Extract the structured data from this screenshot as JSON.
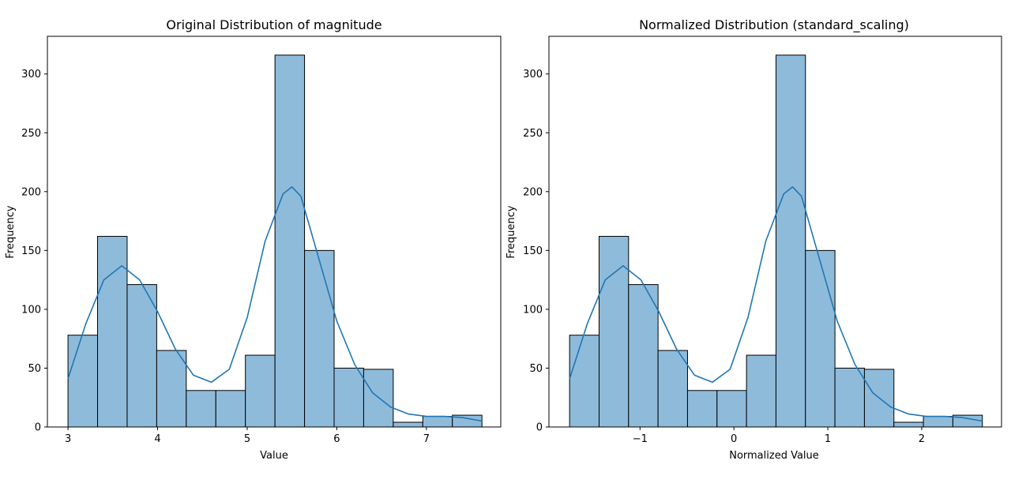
{
  "chart_data": [
    {
      "type": "bar",
      "title": "Original Distribution of magnitude",
      "xlabel": "Value",
      "ylabel": "Frequency",
      "xlim": [
        2.77,
        7.83
      ],
      "ylim": [
        0,
        332
      ],
      "bin_edges": [
        3.0,
        3.33,
        3.66,
        3.99,
        4.32,
        4.65,
        4.98,
        5.31,
        5.64,
        5.97,
        6.3,
        6.63,
        6.96,
        7.29,
        7.62
      ],
      "values": [
        78,
        162,
        121,
        65,
        31,
        31,
        61,
        316,
        150,
        50,
        49,
        4,
        9,
        10
      ],
      "xticks": [
        3,
        4,
        5,
        6,
        7
      ],
      "xtick_labels": [
        "3",
        "4",
        "5",
        "6",
        "7"
      ],
      "yticks": [
        0,
        50,
        100,
        150,
        200,
        250,
        300
      ],
      "kde": {
        "x": [
          3.0,
          3.2,
          3.4,
          3.6,
          3.8,
          4.0,
          4.2,
          4.4,
          4.6,
          4.8,
          5.0,
          5.2,
          5.4,
          5.5,
          5.6,
          5.8,
          6.0,
          6.2,
          6.4,
          6.6,
          6.8,
          7.0,
          7.2,
          7.4,
          7.62
        ],
        "y": [
          41,
          88,
          125,
          137,
          125,
          98,
          66,
          44,
          38,
          49,
          93,
          158,
          198,
          204,
          196,
          143,
          90,
          53,
          29,
          17,
          11,
          9,
          9,
          8,
          5
        ]
      },
      "bar_fill": "#8fbbdb",
      "bar_edge": "#000000",
      "line_color": "#1f77b4",
      "grid": false
    },
    {
      "type": "bar",
      "title": "Normalized Distribution (standard_scaling)",
      "xlabel": "Normalized Value",
      "ylabel": "Frequency",
      "xlim": [
        -1.97,
        2.85
      ],
      "ylim": [
        0,
        332
      ],
      "bin_edges": [
        -1.75,
        -1.436,
        -1.122,
        -0.808,
        -0.494,
        -0.18,
        0.134,
        0.448,
        0.762,
        1.076,
        1.39,
        1.704,
        2.018,
        2.332,
        2.646
      ],
      "values": [
        78,
        162,
        121,
        65,
        31,
        31,
        61,
        316,
        150,
        50,
        49,
        4,
        9,
        10
      ],
      "xticks": [
        -1,
        0,
        1,
        2
      ],
      "xtick_labels": [
        "−1",
        "0",
        "1",
        "2"
      ],
      "yticks": [
        0,
        50,
        100,
        150,
        200,
        250,
        300
      ],
      "kde": {
        "x": [
          -1.75,
          -1.56,
          -1.37,
          -1.18,
          -0.99,
          -0.8,
          -0.61,
          -0.42,
          -0.23,
          -0.04,
          0.15,
          0.34,
          0.53,
          0.625,
          0.72,
          0.91,
          1.1,
          1.29,
          1.48,
          1.67,
          1.86,
          2.05,
          2.24,
          2.43,
          2.646
        ],
        "y": [
          41,
          88,
          125,
          137,
          125,
          98,
          66,
          44,
          38,
          49,
          93,
          158,
          198,
          204,
          196,
          143,
          90,
          53,
          29,
          17,
          11,
          9,
          9,
          8,
          5
        ]
      },
      "bar_fill": "#8fbbdb",
      "bar_edge": "#000000",
      "line_color": "#1f77b4",
      "grid": false
    }
  ]
}
